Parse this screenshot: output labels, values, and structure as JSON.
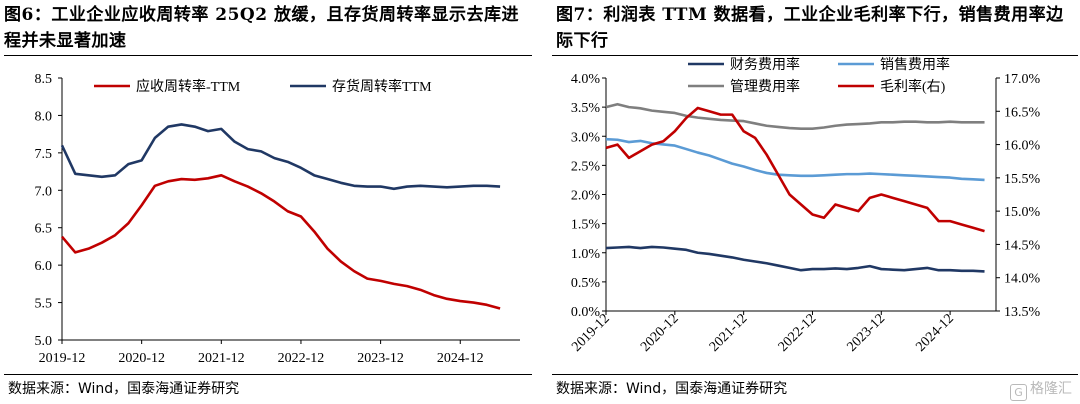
{
  "watermark": {
    "text": "格隆汇",
    "logo": "G"
  },
  "left": {
    "title": "图6：工业企业应收周转率 25Q2 放缓，且存货周转率显示去库进程并未显著加速",
    "source": "数据来源：Wind，国泰海通证券研究",
    "chart_data": {
      "type": "line",
      "title": "图6：工业企业应收周转率 25Q2 放缓，且存货周转率显示去库进程并未显著加速",
      "xlabel": "",
      "ylabel": "",
      "ylim": [
        5.0,
        8.5
      ],
      "yticks": [
        "5.0",
        "5.5",
        "6.0",
        "6.5",
        "7.0",
        "7.5",
        "8.0",
        "8.5"
      ],
      "xticks": [
        "2019-12",
        "2020-12",
        "2021-12",
        "2022-12",
        "2023-12",
        "2024-12"
      ],
      "grid": false,
      "legend": "top",
      "x": [
        "2019-12",
        "2020-02",
        "2020-04",
        "2020-06",
        "2020-08",
        "2020-10",
        "2020-12",
        "2021-02",
        "2021-04",
        "2021-06",
        "2021-08",
        "2021-10",
        "2021-12",
        "2022-02",
        "2022-04",
        "2022-06",
        "2022-08",
        "2022-10",
        "2022-12",
        "2023-02",
        "2023-04",
        "2023-06",
        "2023-08",
        "2023-10",
        "2023-12",
        "2024-02",
        "2024-04",
        "2024-06",
        "2024-08",
        "2024-10",
        "2024-12",
        "2025-02",
        "2025-04",
        "2025-06"
      ],
      "series": [
        {
          "name": "应收周转率-TTM",
          "color": "#c00000",
          "values": [
            6.38,
            6.17,
            6.22,
            6.3,
            6.4,
            6.56,
            6.8,
            7.06,
            7.12,
            7.15,
            7.14,
            7.16,
            7.2,
            7.12,
            7.05,
            6.96,
            6.85,
            6.72,
            6.65,
            6.45,
            6.22,
            6.05,
            5.92,
            5.82,
            5.79,
            5.75,
            5.72,
            5.67,
            5.6,
            5.55,
            5.52,
            5.5,
            5.47,
            5.42
          ]
        },
        {
          "name": "存货周转率TTM",
          "color": "#203864",
          "values": [
            7.6,
            7.22,
            7.2,
            7.18,
            7.2,
            7.35,
            7.4,
            7.7,
            7.85,
            7.88,
            7.85,
            7.79,
            7.82,
            7.65,
            7.55,
            7.52,
            7.43,
            7.38,
            7.3,
            7.2,
            7.15,
            7.1,
            7.06,
            7.05,
            7.05,
            7.02,
            7.05,
            7.06,
            7.05,
            7.04,
            7.05,
            7.06,
            7.06,
            7.05
          ]
        }
      ]
    }
  },
  "right": {
    "title": "图7：利润表 TTM 数据看，工业企业毛利率下行，销售费用率边际下行",
    "source": "数据来源：Wind，国泰海通证券研究",
    "chart_data": {
      "type": "line",
      "title": "图7：利润表 TTM 数据看，工业企业毛利率下行，销售费用率边际下行",
      "xlabel": "",
      "ylabel": "",
      "ylim": [
        0.0,
        4.0
      ],
      "y2lim": [
        13.5,
        17.0
      ],
      "yticks": [
        "0.0%",
        "0.5%",
        "1.0%",
        "1.5%",
        "2.0%",
        "2.5%",
        "3.0%",
        "3.5%",
        "4.0%"
      ],
      "y2ticks": [
        "13.5%",
        "14.0%",
        "14.5%",
        "15.0%",
        "15.5%",
        "16.0%",
        "16.5%",
        "17.0%"
      ],
      "xticks": [
        "2019-12",
        "2020-12",
        "2021-12",
        "2022-12",
        "2023-12",
        "2024-12"
      ],
      "grid": false,
      "legend": "top",
      "x": [
        "2019-12",
        "2020-02",
        "2020-04",
        "2020-06",
        "2020-08",
        "2020-10",
        "2020-12",
        "2021-02",
        "2021-04",
        "2021-06",
        "2021-08",
        "2021-10",
        "2021-12",
        "2022-02",
        "2022-04",
        "2022-06",
        "2022-08",
        "2022-10",
        "2022-12",
        "2023-02",
        "2023-04",
        "2023-06",
        "2023-08",
        "2023-10",
        "2023-12",
        "2024-02",
        "2024-04",
        "2024-06",
        "2024-08",
        "2024-10",
        "2024-12",
        "2025-02",
        "2025-04",
        "2025-06"
      ],
      "series": [
        {
          "name": "财务费用率",
          "color": "#203864",
          "axis": "left",
          "values": [
            1.08,
            1.09,
            1.1,
            1.08,
            1.1,
            1.09,
            1.07,
            1.05,
            1.0,
            0.98,
            0.95,
            0.92,
            0.88,
            0.85,
            0.82,
            0.78,
            0.74,
            0.7,
            0.72,
            0.72,
            0.73,
            0.72,
            0.74,
            0.77,
            0.72,
            0.71,
            0.7,
            0.72,
            0.74,
            0.7,
            0.7,
            0.69,
            0.69,
            0.68
          ]
        },
        {
          "name": "销售费用率",
          "color": "#5b9bd5",
          "axis": "left",
          "values": [
            2.95,
            2.94,
            2.9,
            2.92,
            2.88,
            2.86,
            2.84,
            2.78,
            2.72,
            2.67,
            2.6,
            2.53,
            2.48,
            2.42,
            2.37,
            2.34,
            2.33,
            2.32,
            2.32,
            2.33,
            2.34,
            2.35,
            2.35,
            2.36,
            2.35,
            2.34,
            2.33,
            2.32,
            2.31,
            2.3,
            2.29,
            2.27,
            2.26,
            2.25
          ]
        },
        {
          "name": "管理费用率",
          "color": "#7f7f7f",
          "axis": "left",
          "values": [
            3.5,
            3.55,
            3.5,
            3.48,
            3.44,
            3.42,
            3.4,
            3.35,
            3.32,
            3.3,
            3.28,
            3.27,
            3.26,
            3.22,
            3.18,
            3.16,
            3.14,
            3.13,
            3.13,
            3.15,
            3.18,
            3.2,
            3.21,
            3.22,
            3.24,
            3.24,
            3.25,
            3.25,
            3.24,
            3.24,
            3.25,
            3.24,
            3.24,
            3.24
          ]
        },
        {
          "name": "毛利率(右)",
          "color": "#c00000",
          "axis": "right",
          "values": [
            15.95,
            16.0,
            15.8,
            15.9,
            16.0,
            16.05,
            16.2,
            16.4,
            16.55,
            16.5,
            16.45,
            16.45,
            16.2,
            16.1,
            15.85,
            15.55,
            15.25,
            15.1,
            14.95,
            14.9,
            15.1,
            15.05,
            15.0,
            15.2,
            15.25,
            15.2,
            15.15,
            15.1,
            15.05,
            14.85,
            14.85,
            14.8,
            14.75,
            14.7
          ]
        }
      ]
    }
  }
}
